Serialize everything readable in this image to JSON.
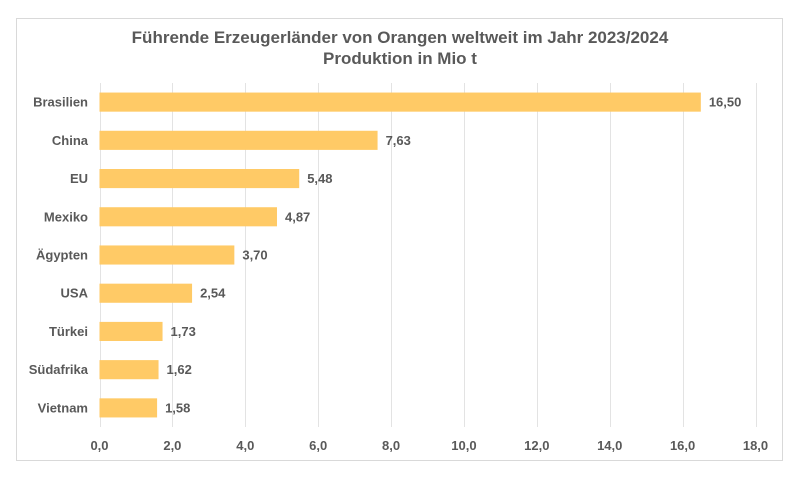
{
  "chart_data": {
    "type": "bar",
    "orientation": "horizontal",
    "title": "Führende Erzeugerländer von Orangen weltweit im Jahr 2023/2024",
    "subtitle": "Produktion in Mio t",
    "categories": [
      "Brasilien",
      "China",
      "EU",
      "Mexiko",
      "Ägypten",
      "USA",
      "Türkei",
      "Südafrika",
      "Vietnam"
    ],
    "values": [
      16.5,
      7.63,
      5.48,
      4.87,
      3.7,
      2.54,
      1.73,
      1.62,
      1.58
    ],
    "data_labels": [
      "16,50",
      "7,63",
      "5,48",
      "4,87",
      "3,70",
      "2,54",
      "1,73",
      "1,62",
      "1,58"
    ],
    "xlabel": "",
    "ylabel": "",
    "xlim": [
      0,
      18
    ],
    "x_ticks": [
      0,
      2,
      4,
      6,
      8,
      10,
      12,
      14,
      16,
      18
    ],
    "x_tick_labels": [
      "0,0",
      "2,0",
      "4,0",
      "6,0",
      "8,0",
      "10,0",
      "12,0",
      "14,0",
      "16,0",
      "18,0"
    ],
    "grid": "vertical",
    "legend": "none",
    "bar_color": "#FFCA66"
  }
}
